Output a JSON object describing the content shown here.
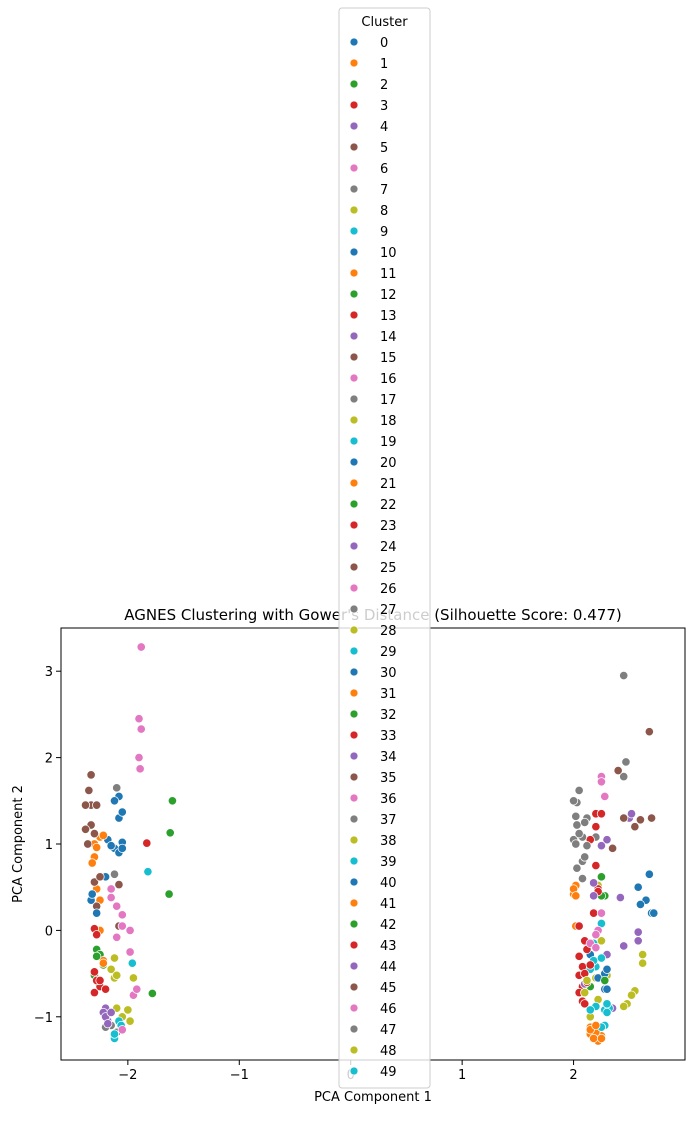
{
  "chart_data": {
    "type": "scatter",
    "title": "AGNES Clustering with Gower's Distance (Silhouette Score: 0.477)",
    "xlabel": "PCA Component 1",
    "ylabel": "PCA Component 2",
    "xlim": [
      -2.6,
      3.0
    ],
    "ylim": [
      -1.5,
      3.5
    ],
    "xticks": [
      -2,
      -1,
      0,
      1,
      2
    ],
    "yticks": [
      -1,
      0,
      1,
      2,
      3
    ],
    "grid": false,
    "legend": {
      "title": "Cluster",
      "placement": "top-center",
      "labels": [
        "0",
        "1",
        "2",
        "3",
        "4",
        "5",
        "6",
        "7",
        "8",
        "9",
        "10",
        "11",
        "12",
        "13",
        "14",
        "15",
        "16",
        "17",
        "18",
        "19",
        "20",
        "21",
        "22",
        "23",
        "24",
        "25",
        "26",
        "27",
        "28",
        "29",
        "30",
        "31",
        "32",
        "33",
        "34",
        "35",
        "36",
        "37",
        "38",
        "39",
        "40",
        "41",
        "42",
        "43",
        "44",
        "45",
        "46",
        "47",
        "48",
        "49"
      ]
    },
    "palette": [
      "#1f77b4",
      "#ff7f0e",
      "#2ca02c",
      "#d62728",
      "#9467bd",
      "#8c564b",
      "#e377c2",
      "#7f7f7f",
      "#bcbd22",
      "#17becf"
    ],
    "series": [
      {
        "name": "0",
        "points": [
          [
            -2.12,
            0.95
          ],
          [
            -2.18,
            1.05
          ],
          [
            -2.08,
            0.9
          ],
          [
            -2.15,
            0.98
          ],
          [
            -2.05,
            1.02
          ]
        ]
      },
      {
        "name": "1",
        "points": [
          [
            -2.25,
            1.08
          ],
          [
            -2.3,
            1.0
          ],
          [
            -2.22,
            1.1
          ],
          [
            -2.28,
            0.96
          ]
        ]
      },
      {
        "name": "2",
        "points": [
          [
            -2.28,
            -0.22
          ],
          [
            -2.3,
            -0.52
          ],
          [
            -2.25,
            -0.28
          ],
          [
            -2.27,
            -0.6
          ],
          [
            -2.22,
            -0.4
          ]
        ]
      },
      {
        "name": "3",
        "points": [
          [
            -2.3,
            -0.72
          ],
          [
            -2.25,
            -0.65
          ],
          [
            -2.2,
            -0.68
          ],
          [
            -2.28,
            -0.58
          ]
        ]
      },
      {
        "name": "4",
        "points": [
          [
            -2.2,
            -0.9
          ],
          [
            -2.18,
            -1.05
          ],
          [
            -2.22,
            -0.95
          ]
        ]
      },
      {
        "name": "5",
        "points": [
          [
            -2.33,
            1.8
          ],
          [
            -2.35,
            1.62
          ],
          [
            -2.33,
            1.45
          ],
          [
            -2.38,
            1.45
          ],
          [
            -2.33,
            1.22
          ],
          [
            -2.36,
            1.0
          ],
          [
            -2.3,
            1.12
          ]
        ]
      },
      {
        "name": "6",
        "points": [
          [
            -1.88,
            3.28
          ],
          [
            -1.9,
            2.45
          ],
          [
            -1.88,
            2.33
          ],
          [
            -1.9,
            2.0
          ],
          [
            -1.89,
            1.87
          ]
        ]
      },
      {
        "name": "7",
        "points": [
          [
            -2.15,
            -1.1
          ],
          [
            -2.2,
            -1.12
          ],
          [
            -2.1,
            -1.18
          ]
        ]
      },
      {
        "name": "8",
        "points": [
          [
            -2.1,
            -0.9
          ],
          [
            -2.0,
            -0.92
          ],
          [
            -1.95,
            -0.55
          ],
          [
            -2.05,
            -1.0
          ],
          [
            -1.98,
            -1.05
          ],
          [
            -2.12,
            -0.55
          ],
          [
            -2.12,
            -0.32
          ]
        ]
      },
      {
        "name": "9",
        "points": [
          [
            -2.08,
            -1.05
          ],
          [
            -2.12,
            -1.25
          ],
          [
            -1.96,
            -0.38
          ],
          [
            -1.82,
            0.68
          ]
        ]
      },
      {
        "name": "10",
        "points": [
          [
            -2.08,
            1.3
          ],
          [
            -2.05,
            1.37
          ],
          [
            -2.08,
            1.55
          ],
          [
            -2.12,
            1.5
          ],
          [
            -2.05,
            0.95
          ]
        ]
      },
      {
        "name": "11",
        "points": [
          [
            -2.3,
            0.85
          ],
          [
            -2.32,
            0.78
          ],
          [
            -2.25,
            0.62
          ],
          [
            -2.28,
            0.48
          ],
          [
            -2.25,
            0.35
          ],
          [
            -2.22,
            -0.35
          ]
        ]
      },
      {
        "name": "12",
        "points": [
          [
            -1.6,
            1.5
          ],
          [
            -1.62,
            1.13
          ],
          [
            -1.63,
            0.42
          ],
          [
            -1.78,
            -0.73
          ]
        ]
      },
      {
        "name": "13",
        "points": [
          [
            -1.83,
            1.01
          ],
          [
            -2.25,
            -0.58
          ],
          [
            -2.3,
            -0.48
          ]
        ]
      },
      {
        "name": "14",
        "points": [
          [
            -2.2,
            -1.0
          ],
          [
            -2.15,
            -0.95
          ]
        ]
      },
      {
        "name": "15",
        "points": [
          [
            -2.38,
            1.17
          ],
          [
            -2.3,
            0.56
          ],
          [
            -2.08,
            0.53
          ],
          [
            -2.08,
            0.05
          ],
          [
            -2.28,
            0.28
          ]
        ]
      },
      {
        "name": "16",
        "points": [
          [
            -2.15,
            0.48
          ],
          [
            -2.15,
            0.38
          ],
          [
            -2.1,
            0.28
          ],
          [
            -2.05,
            0.18
          ],
          [
            -2.05,
            0.05
          ],
          [
            -1.98,
            0.0
          ],
          [
            -1.98,
            -0.25
          ],
          [
            -2.1,
            -0.08
          ]
        ]
      },
      {
        "name": "17",
        "points": [
          [
            -2.1,
            1.65
          ],
          [
            -2.12,
            0.65
          ]
        ]
      },
      {
        "name": "18",
        "points": [
          [
            -2.15,
            -0.45
          ],
          [
            -2.1,
            -0.52
          ]
        ]
      },
      {
        "name": "19",
        "points": [
          [
            -2.12,
            -1.2
          ],
          [
            -2.06,
            -1.1
          ]
        ]
      },
      {
        "name": "20",
        "points": [
          [
            -2.33,
            0.35
          ],
          [
            -2.32,
            0.42
          ],
          [
            -2.28,
            0.2
          ],
          [
            -2.2,
            0.62
          ]
        ]
      },
      {
        "name": "21",
        "points": [
          [
            -2.25,
            0.0
          ],
          [
            -2.22,
            -0.38
          ]
        ]
      },
      {
        "name": "22",
        "points": [
          [
            -2.28,
            -0.3
          ]
        ]
      },
      {
        "name": "23",
        "points": [
          [
            -2.3,
            0.02
          ],
          [
            -2.28,
            -0.05
          ]
        ]
      },
      {
        "name": "24",
        "points": [
          [
            -2.18,
            -1.08
          ]
        ]
      },
      {
        "name": "25",
        "points": [
          [
            -2.28,
            1.45
          ],
          [
            -2.25,
            0.62
          ]
        ]
      },
      {
        "name": "26",
        "points": [
          [
            -2.05,
            -1.15
          ],
          [
            -1.95,
            -0.75
          ],
          [
            -1.92,
            -0.68
          ]
        ]
      },
      {
        "name": "27",
        "points": [
          [
            2.05,
            1.62
          ],
          [
            2.03,
            1.48
          ],
          [
            2.0,
            1.5
          ],
          [
            2.02,
            1.32
          ],
          [
            2.03,
            1.22
          ],
          [
            2.05,
            1.1
          ],
          [
            2.08,
            1.08
          ],
          [
            2.0,
            1.05
          ],
          [
            2.02,
            1.0
          ],
          [
            2.05,
            1.12
          ],
          [
            2.08,
            0.8
          ],
          [
            2.03,
            0.72
          ],
          [
            2.08,
            0.6
          ],
          [
            2.45,
            2.95
          ],
          [
            2.47,
            1.95
          ],
          [
            2.45,
            1.78
          ],
          [
            2.2,
            1.08
          ]
        ]
      },
      {
        "name": "28",
        "points": [
          [
            2.22,
            0.52
          ],
          [
            2.25,
            -0.12
          ],
          [
            2.2,
            -0.55
          ],
          [
            2.15,
            -1.0
          ]
        ]
      },
      {
        "name": "29",
        "points": [
          [
            2.2,
            -0.42
          ],
          [
            2.25,
            0.08
          ],
          [
            2.18,
            -0.15
          ]
        ]
      },
      {
        "name": "30",
        "points": [
          [
            2.15,
            -0.28
          ],
          [
            2.28,
            -0.68
          ],
          [
            2.22,
            -0.55
          ]
        ]
      },
      {
        "name": "31",
        "points": [
          [
            2.02,
            0.52
          ],
          [
            2.0,
            0.42
          ],
          [
            2.02,
            0.05
          ],
          [
            2.15,
            -1.2
          ],
          [
            2.18,
            -1.15
          ],
          [
            2.22,
            -1.28
          ],
          [
            2.25,
            -1.22
          ],
          [
            2.2,
            -1.18
          ],
          [
            2.15,
            -1.12
          ]
        ]
      },
      {
        "name": "32",
        "points": [
          [
            2.25,
            0.62
          ],
          [
            2.28,
            0.4
          ],
          [
            2.15,
            -0.65
          ]
        ]
      },
      {
        "name": "33",
        "points": [
          [
            2.15,
            1.05
          ],
          [
            2.18,
            0.2
          ],
          [
            2.05,
            0.05
          ],
          [
            2.05,
            -0.3
          ],
          [
            2.08,
            -0.42
          ],
          [
            2.05,
            -0.52
          ],
          [
            2.08,
            -0.65
          ],
          [
            2.05,
            -0.72
          ],
          [
            2.08,
            -0.82
          ],
          [
            2.1,
            -0.85
          ]
        ]
      },
      {
        "name": "34",
        "points": [
          [
            2.5,
            1.3
          ],
          [
            2.52,
            1.35
          ],
          [
            2.42,
            0.38
          ],
          [
            2.58,
            -0.02
          ],
          [
            2.58,
            -0.12
          ],
          [
            2.45,
            -0.18
          ],
          [
            2.3,
            -0.28
          ],
          [
            2.35,
            -0.9
          ],
          [
            2.1,
            -0.62
          ]
        ]
      },
      {
        "name": "35",
        "points": [
          [
            2.68,
            2.3
          ],
          [
            2.7,
            1.3
          ],
          [
            2.6,
            1.28
          ],
          [
            2.55,
            1.2
          ],
          [
            2.35,
            0.95
          ]
        ]
      },
      {
        "name": "36",
        "points": [
          [
            2.25,
            1.78
          ],
          [
            2.28,
            1.55
          ],
          [
            2.25,
            1.72
          ],
          [
            2.25,
            0.2
          ]
        ]
      },
      {
        "name": "37",
        "points": [
          [
            2.12,
            0.98
          ],
          [
            2.1,
            0.85
          ]
        ]
      },
      {
        "name": "38",
        "points": [
          [
            2.62,
            -0.28
          ],
          [
            2.62,
            -0.38
          ],
          [
            2.55,
            -0.7
          ],
          [
            2.52,
            -0.75
          ],
          [
            2.48,
            -0.85
          ],
          [
            2.45,
            -0.88
          ],
          [
            2.3,
            -0.52
          ],
          [
            2.22,
            -0.8
          ]
        ]
      },
      {
        "name": "39",
        "points": [
          [
            2.28,
            -0.92
          ],
          [
            2.32,
            -0.9
          ],
          [
            2.3,
            -0.85
          ],
          [
            2.28,
            -1.1
          ],
          [
            2.25,
            -1.12
          ],
          [
            2.3,
            -0.95
          ],
          [
            2.15,
            -0.45
          ],
          [
            2.18,
            -0.35
          ],
          [
            2.25,
            -0.32
          ]
        ]
      },
      {
        "name": "40",
        "points": [
          [
            2.68,
            0.65
          ],
          [
            2.65,
            0.35
          ],
          [
            2.7,
            0.2
          ],
          [
            2.72,
            0.2
          ],
          [
            2.58,
            0.5
          ],
          [
            2.6,
            0.3
          ],
          [
            2.3,
            -0.68
          ],
          [
            2.28,
            -0.5
          ],
          [
            2.3,
            -0.45
          ]
        ]
      },
      {
        "name": "41",
        "points": [
          [
            2.0,
            0.48
          ],
          [
            2.02,
            0.4
          ],
          [
            2.15,
            -1.15
          ],
          [
            2.18,
            -1.25
          ],
          [
            2.25,
            -1.25
          ],
          [
            2.2,
            -1.1
          ]
        ]
      },
      {
        "name": "42",
        "points": [
          [
            2.25,
            0.4
          ],
          [
            2.28,
            -0.58
          ]
        ]
      },
      {
        "name": "43",
        "points": [
          [
            2.2,
            1.35
          ],
          [
            2.25,
            1.35
          ],
          [
            2.2,
            1.2
          ],
          [
            2.2,
            0.75
          ],
          [
            2.22,
            0.48
          ],
          [
            2.22,
            0.45
          ],
          [
            2.1,
            -0.12
          ],
          [
            2.12,
            -0.22
          ],
          [
            2.15,
            -0.4
          ],
          [
            2.1,
            -0.5
          ],
          [
            2.12,
            -0.6
          ]
        ]
      },
      {
        "name": "44",
        "points": [
          [
            2.3,
            1.05
          ],
          [
            2.25,
            0.98
          ],
          [
            2.18,
            0.55
          ],
          [
            2.18,
            0.4
          ]
        ]
      },
      {
        "name": "45",
        "points": [
          [
            2.4,
            1.85
          ],
          [
            2.45,
            1.3
          ]
        ]
      },
      {
        "name": "46",
        "points": [
          [
            2.22,
            0.0
          ],
          [
            2.2,
            -0.05
          ],
          [
            2.15,
            -0.15
          ],
          [
            2.2,
            -0.2
          ]
        ]
      },
      {
        "name": "47",
        "points": [
          [
            2.12,
            1.3
          ],
          [
            2.1,
            1.25
          ]
        ]
      },
      {
        "name": "48",
        "points": [
          [
            2.1,
            -0.72
          ],
          [
            2.12,
            -0.58
          ]
        ]
      },
      {
        "name": "49",
        "points": [
          [
            2.2,
            -0.88
          ],
          [
            2.15,
            -0.92
          ]
        ]
      }
    ]
  }
}
